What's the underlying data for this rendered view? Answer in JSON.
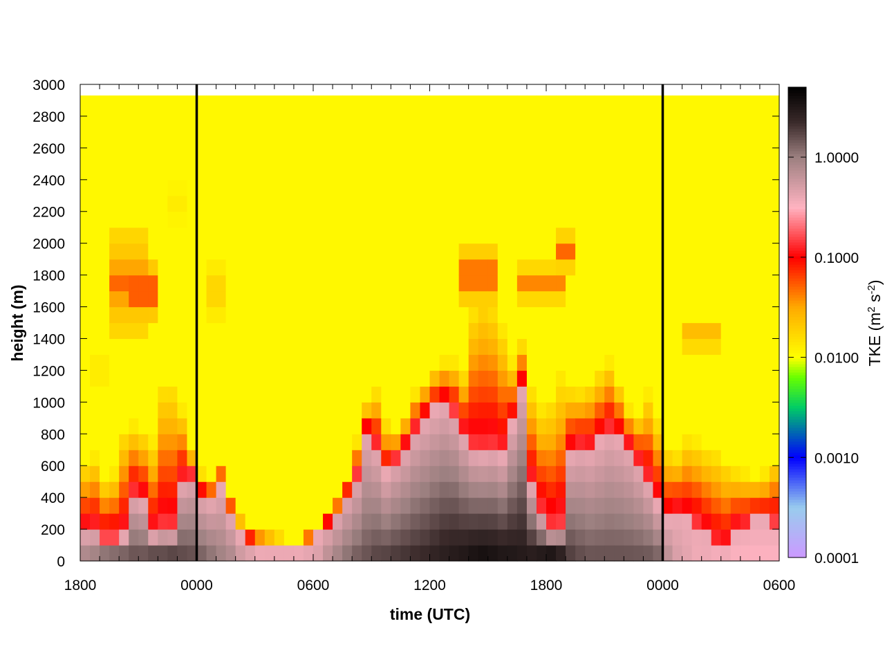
{
  "chart_data": {
    "type": "heatmap",
    "title": "",
    "xlabel": "time (UTC)",
    "ylabel": "height (m)",
    "colorbar_label": "TKE (m",
    "colorbar_label_sup1": "2",
    "colorbar_label_mid": " s",
    "colorbar_label_sup2": "-2",
    "colorbar_label_end": ")",
    "x_range_hours": [
      0,
      36
    ],
    "x_ticks": [
      {
        "hour": 0,
        "label": "1800"
      },
      {
        "hour": 6,
        "label": "0000"
      },
      {
        "hour": 12,
        "label": "0600"
      },
      {
        "hour": 18,
        "label": "1200"
      },
      {
        "hour": 24,
        "label": "1800"
      },
      {
        "hour": 30,
        "label": "0000"
      },
      {
        "hour": 36,
        "label": "0600"
      }
    ],
    "ylim": [
      0,
      3000
    ],
    "y_ticks": [
      0,
      200,
      400,
      600,
      800,
      1000,
      1200,
      1400,
      1600,
      1800,
      2000,
      2200,
      2400,
      2600,
      2800,
      3000
    ],
    "y_tick_labels": [
      "0",
      "200",
      "400",
      "600",
      "800",
      "1000",
      "1200",
      "1400",
      "1600",
      "1800",
      "2000",
      "2200",
      "2400",
      "2600",
      "2800",
      "3000"
    ],
    "color_scale": "log",
    "colorbar_range": [
      0.0001,
      5.0
    ],
    "colorbar_ticks": [
      {
        "value": 0.0001,
        "label": "0.0001"
      },
      {
        "value": 0.001,
        "label": "0.0010"
      },
      {
        "value": 0.01,
        "label": "0.0100"
      },
      {
        "value": 0.1,
        "label": "0.1000"
      },
      {
        "value": 1.0,
        "label": "1.0000"
      }
    ],
    "colorbar_colors": [
      {
        "log10": -4.0,
        "color": "#cc99ff"
      },
      {
        "log10": -3.5,
        "color": "#99ccee"
      },
      {
        "log10": -3.0,
        "color": "#0000ff"
      },
      {
        "log10": -2.5,
        "color": "#00cc66"
      },
      {
        "log10": -2.2,
        "color": "#66ff00"
      },
      {
        "log10": -2.0,
        "color": "#ffff00"
      },
      {
        "log10": -1.5,
        "color": "#ffaa00"
      },
      {
        "log10": -1.0,
        "color": "#ff0000"
      },
      {
        "log10": -0.5,
        "color": "#ffb3c1"
      },
      {
        "log10": 0.0,
        "color": "#9c8080"
      },
      {
        "log10": 0.35,
        "color": "#3a2a2a"
      },
      {
        "log10": 0.7,
        "color": "#000000"
      }
    ],
    "data_top_height_m": 2930,
    "midnight_lines_hours": [
      6,
      30
    ],
    "columns": [
      {
        "t": 0.0,
        "bl": 190,
        "dark": 0.4,
        "sfc": 0.8,
        "ml": 620
      },
      {
        "t": 0.5,
        "bl": 200,
        "dark": 0.5,
        "sfc": 0.9,
        "ml": 660
      },
      {
        "t": 1.0,
        "bl": 150,
        "dark": 0.6,
        "sfc": 1.1,
        "ml": 520
      },
      {
        "t": 1.5,
        "bl": 150,
        "dark": 0.6,
        "sfc": 1.2,
        "ml": 560
      },
      {
        "t": 2.0,
        "bl": 160,
        "dark": 0.6,
        "sfc": 1.3,
        "ml": 840
      },
      {
        "t": 2.5,
        "bl": 420,
        "dark": 0.3,
        "sfc": 1.4,
        "ml": 860
      },
      {
        "t": 3.0,
        "bl": 380,
        "dark": 0.4,
        "sfc": 1.4,
        "ml": 820
      },
      {
        "t": 3.5,
        "bl": 170,
        "dark": 0.6,
        "sfc": 1.6,
        "ml": 760
      },
      {
        "t": 4.0,
        "bl": 200,
        "dark": 0.5,
        "sfc": 1.6,
        "ml": 1140
      },
      {
        "t": 4.5,
        "bl": 190,
        "dark": 0.6,
        "sfc": 1.7,
        "ml": 1150
      },
      {
        "t": 5.0,
        "bl": 500,
        "dark": 0.3,
        "sfc": 1.5,
        "ml": 960
      },
      {
        "t": 5.5,
        "bl": 540,
        "dark": 0.3,
        "sfc": 1.4,
        "ml": 700
      },
      {
        "t": 6.0,
        "bl": 420,
        "dark": 0.3,
        "sfc": 1.2,
        "ml": 560
      },
      {
        "t": 6.5,
        "bl": 390,
        "dark": 0.3,
        "sfc": 1.0,
        "ml": 520
      },
      {
        "t": 7.0,
        "bl": 470,
        "dark": 0.25,
        "sfc": 0.8,
        "ml": 640
      },
      {
        "t": 7.5,
        "bl": 300,
        "dark": 0.3,
        "sfc": 0.7,
        "ml": 420
      },
      {
        "t": 8.0,
        "bl": 160,
        "dark": 0.2,
        "sfc": 0.5,
        "ml": 280
      },
      {
        "t": 8.5,
        "bl": 120,
        "dark": 0.1,
        "sfc": 0.4,
        "ml": 230
      },
      {
        "t": 9.0,
        "bl": 80,
        "dark": 0.1,
        "sfc": 0.3,
        "ml": 200
      },
      {
        "t": 9.5,
        "bl": 60,
        "dark": 0.1,
        "sfc": 0.3,
        "ml": 180
      },
      {
        "t": 10.0,
        "bl": 60,
        "dark": 0.1,
        "sfc": 0.3,
        "ml": 160
      },
      {
        "t": 10.5,
        "bl": 60,
        "dark": 0.1,
        "sfc": 0.3,
        "ml": 110
      },
      {
        "t": 11.0,
        "bl": 80,
        "dark": 0.1,
        "sfc": 0.3,
        "ml": 140
      },
      {
        "t": 11.5,
        "bl": 120,
        "dark": 0.1,
        "sfc": 0.35,
        "ml": 180
      },
      {
        "t": 12.0,
        "bl": 160,
        "dark": 0.15,
        "sfc": 0.4,
        "ml": 210
      },
      {
        "t": 12.5,
        "bl": 240,
        "dark": 0.2,
        "sfc": 0.6,
        "ml": 290
      },
      {
        "t": 13.0,
        "bl": 320,
        "dark": 0.3,
        "sfc": 0.8,
        "ml": 380
      },
      {
        "t": 13.5,
        "bl": 430,
        "dark": 0.4,
        "sfc": 1.0,
        "ml": 500
      },
      {
        "t": 14.0,
        "bl": 540,
        "dark": 0.5,
        "sfc": 1.2,
        "ml": 760
      },
      {
        "t": 14.5,
        "bl": 820,
        "dark": 0.6,
        "sfc": 1.3,
        "ml": 990
      },
      {
        "t": 15.0,
        "bl": 720,
        "dark": 0.8,
        "sfc": 1.5,
        "ml": 1080
      },
      {
        "t": 15.5,
        "bl": 560,
        "dark": 0.7,
        "sfc": 1.6,
        "ml": 880
      },
      {
        "t": 16.0,
        "bl": 640,
        "dark": 0.8,
        "sfc": 1.7,
        "ml": 820
      },
      {
        "t": 16.5,
        "bl": 720,
        "dark": 0.8,
        "sfc": 1.8,
        "ml": 920
      },
      {
        "t": 17.0,
        "bl": 830,
        "dark": 0.9,
        "sfc": 1.9,
        "ml": 1060
      },
      {
        "t": 17.5,
        "bl": 900,
        "dark": 1.0,
        "sfc": 2.0,
        "ml": 1140
      },
      {
        "t": 18.0,
        "bl": 960,
        "dark": 1.1,
        "sfc": 2.2,
        "ml": 1220
      },
      {
        "t": 18.5,
        "bl": 1000,
        "dark": 1.2,
        "sfc": 2.4,
        "ml": 1260
      },
      {
        "t": 19.0,
        "bl": 940,
        "dark": 1.4,
        "sfc": 2.6,
        "ml": 1260
      },
      {
        "t": 19.5,
        "bl": 800,
        "dark": 1.6,
        "sfc": 2.8,
        "ml": 1200
      },
      {
        "t": 20.0,
        "bl": 700,
        "dark": 2.4,
        "sfc": 3.2,
        "ml": 1620
      },
      {
        "t": 20.5,
        "bl": 680,
        "dark": 2.6,
        "sfc": 3.4,
        "ml": 1720
      },
      {
        "t": 21.0,
        "bl": 700,
        "dark": 2.4,
        "sfc": 3.2,
        "ml": 1660
      },
      {
        "t": 21.5,
        "bl": 660,
        "dark": 1.6,
        "sfc": 3.0,
        "ml": 1480
      },
      {
        "t": 22.0,
        "bl": 860,
        "dark": 1.2,
        "sfc": 2.8,
        "ml": 1260
      },
      {
        "t": 22.5,
        "bl": 1100,
        "dark": 1.0,
        "sfc": 2.6,
        "ml": 1380
      },
      {
        "t": 23.0,
        "bl": 480,
        "dark": 0.8,
        "sfc": 2.8,
        "ml": 1100
      },
      {
        "t": 23.5,
        "bl": 300,
        "dark": 0.6,
        "sfc": 3.0,
        "ml": 980
      },
      {
        "t": 24.0,
        "bl": 200,
        "dark": 0.5,
        "sfc": 3.2,
        "ml": 1040
      },
      {
        "t": 24.5,
        "bl": 220,
        "dark": 0.4,
        "sfc": 2.6,
        "ml": 1180
      },
      {
        "t": 25.0,
        "bl": 680,
        "dark": 0.2,
        "sfc": 1.6,
        "ml": 1100
      },
      {
        "t": 25.5,
        "bl": 720,
        "dark": 0.2,
        "sfc": 1.4,
        "ml": 1080
      },
      {
        "t": 26.0,
        "bl": 700,
        "dark": 0.2,
        "sfc": 1.3,
        "ml": 1120
      },
      {
        "t": 26.5,
        "bl": 760,
        "dark": 0.2,
        "sfc": 1.3,
        "ml": 1200
      },
      {
        "t": 27.0,
        "bl": 820,
        "dark": 0.2,
        "sfc": 1.3,
        "ml": 1260
      },
      {
        "t": 27.5,
        "bl": 780,
        "dark": 0.2,
        "sfc": 1.3,
        "ml": 1120
      },
      {
        "t": 28.0,
        "bl": 720,
        "dark": 0.2,
        "sfc": 1.3,
        "ml": 960
      },
      {
        "t": 28.5,
        "bl": 620,
        "dark": 0.2,
        "sfc": 1.3,
        "ml": 920
      },
      {
        "t": 29.0,
        "bl": 500,
        "dark": 0.2,
        "sfc": 1.3,
        "ml": 1060
      },
      {
        "t": 29.5,
        "bl": 360,
        "dark": 0.3,
        "sfc": 1.2,
        "ml": 900
      },
      {
        "t": 30.0,
        "bl": 260,
        "dark": 0.3,
        "sfc": 0.6,
        "ml": 720
      },
      {
        "t": 30.5,
        "bl": 300,
        "dark": 0.25,
        "sfc": 0.4,
        "ml": 680
      },
      {
        "t": 31.0,
        "bl": 260,
        "dark": 0.2,
        "sfc": 0.35,
        "ml": 780
      },
      {
        "t": 31.5,
        "bl": 220,
        "dark": 0.2,
        "sfc": 0.3,
        "ml": 760
      },
      {
        "t": 32.0,
        "bl": 160,
        "dark": 0.15,
        "sfc": 0.3,
        "ml": 720
      },
      {
        "t": 32.5,
        "bl": 90,
        "dark": 0.1,
        "sfc": 0.25,
        "ml": 700
      },
      {
        "t": 33.0,
        "bl": 70,
        "dark": 0.1,
        "sfc": 0.25,
        "ml": 640
      },
      {
        "t": 33.5,
        "bl": 200,
        "dark": 0.1,
        "sfc": 0.25,
        "ml": 580
      },
      {
        "t": 34.0,
        "bl": 220,
        "dark": 0.1,
        "sfc": 0.25,
        "ml": 560
      },
      {
        "t": 34.5,
        "bl": 260,
        "dark": 0.1,
        "sfc": 0.25,
        "ml": 540
      },
      {
        "t": 35.0,
        "bl": 260,
        "dark": 0.1,
        "sfc": 0.25,
        "ml": 560
      },
      {
        "t": 35.5,
        "bl": 240,
        "dark": 0.1,
        "sfc": 0.25,
        "ml": 640
      }
    ],
    "aloft_patches": [
      {
        "t0": 1.5,
        "t1": 3.5,
        "h0": 1400,
        "h1": 2100,
        "peak": 0.05
      },
      {
        "t0": 2.5,
        "t1": 4.0,
        "h0": 1500,
        "h1": 1900,
        "peak": 0.09
      },
      {
        "t0": 4.5,
        "t1": 5.5,
        "h0": 2100,
        "h1": 2400,
        "peak": 0.013
      },
      {
        "t0": 6.5,
        "t1": 7.5,
        "h0": 1500,
        "h1": 1900,
        "peak": 0.02
      },
      {
        "t0": 0.5,
        "t1": 1.5,
        "h0": 1100,
        "h1": 1300,
        "peak": 0.015
      },
      {
        "t0": 19.5,
        "t1": 21.5,
        "h0": 1600,
        "h1": 2000,
        "peak": 0.07
      },
      {
        "t0": 22.5,
        "t1": 25.0,
        "h0": 1600,
        "h1": 1900,
        "peak": 0.04
      },
      {
        "t0": 24.5,
        "t1": 25.5,
        "h0": 1800,
        "h1": 2100,
        "peak": 0.05
      },
      {
        "t0": 31.0,
        "t1": 33.0,
        "h0": 1300,
        "h1": 1550,
        "peak": 0.03
      }
    ]
  }
}
